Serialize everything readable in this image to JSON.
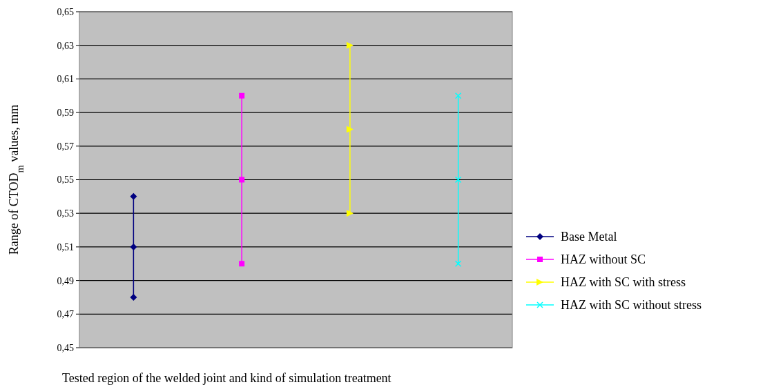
{
  "chart_data": {
    "type": "line",
    "xlabel": "Tested region of the welded joint and kind of  simulation  treatment",
    "ylabel": "Range of CTOD$_{m}$ values, mm",
    "categories": [
      null,
      null,
      null,
      null
    ],
    "series": [
      {
        "type": "bar",
        "color": "#000080",
        "base": [
          0.48,
          null,
          null,
          null
        ],
        "values": [
          0.06,
          null,
          null,
          null
        ]
      },
      {
        "type": "bar",
        "color": "#ff00ff",
        "base": [
          null,
          0.5,
          null,
          null
        ],
        "values": [
          null,
          0.1,
          null,
          null
        ]
      },
      {
        "type": "bar",
        "color": "#ffff00",
        "base": [
          null,
          null,
          0.53,
          null
        ],
        "values": [
          null,
          null,
          0.1,
          null
        ]
      },
      {
        "type": "bar",
        "color": "#00ffff",
        "base": [
          null,
          null,
          null,
          0.5
        ],
        "values": [
          null,
          null,
          null,
          0.1
        ]
      },
      {
        "name": "Base Metal",
        "color": "#000080",
        "marker": "diamond",
        "values": [
          0.51,
          null,
          null,
          null
        ]
      },
      {
        "name": "HAZ without SC",
        "color": "#ff00ff",
        "marker": "square",
        "values": [
          null,
          0.55,
          null,
          null
        ]
      },
      {
        "name": "HAZ with SC with stress",
        "color": "#ffff00",
        "marker": "triangle",
        "values": [
          null,
          null,
          0.58,
          null
        ]
      },
      {
        "name": "HAZ with SC without stress",
        "color": "#00ffff",
        "marker": "cross",
        "values": [
          null,
          null,
          null,
          0.55
        ]
      },
      {
        "type": "scatter",
        "color": "#000080",
        "marker": "diamond",
        "values": [
          0.48,
          null,
          null,
          null
        ]
      },
      {
        "type": "scatter",
        "color": "#000080",
        "marker": "diamond",
        "values": [
          0.54,
          null,
          null,
          null
        ]
      },
      {
        "type": "scatter",
        "color": "#ff00ff",
        "marker": "square",
        "values": [
          null,
          0.5,
          null,
          null
        ]
      },
      {
        "type": "scatter",
        "color": "#ff00ff",
        "marker": "square",
        "values": [
          null,
          0.6,
          null,
          null
        ]
      },
      {
        "type": "scatter",
        "color": "#ffff00",
        "marker": "triangle",
        "values": [
          null,
          null,
          0.53,
          null
        ]
      },
      {
        "type": "scatter",
        "color": "#ffff00",
        "marker": "triangle",
        "values": [
          null,
          null,
          0.63,
          null
        ]
      },
      {
        "type": "scatter",
        "color": "#00ffff",
        "marker": "cross",
        "values": [
          null,
          null,
          null,
          0.5
        ]
      },
      {
        "type": "scatter",
        "color": "#00ffff",
        "marker": "cross",
        "values": [
          null,
          null,
          null,
          0.6
        ]
      }
    ],
    "ylim": [
      0.45,
      0.65
    ],
    "yticks": [
      {
        "value": 0.45,
        "label": "0,45"
      },
      {
        "value": 0.47,
        "label": "0,47"
      },
      {
        "value": 0.49,
        "label": "0,49"
      },
      {
        "value": 0.51,
        "label": "0,51"
      },
      {
        "value": 0.53,
        "label": "0,53"
      },
      {
        "value": 0.55,
        "label": "0,55"
      },
      {
        "value": 0.57,
        "label": "0,57"
      },
      {
        "value": 0.59,
        "label": "0,59"
      },
      {
        "value": 0.61,
        "label": "0,61"
      },
      {
        "value": 0.63,
        "label": "0,63"
      },
      {
        "value": 0.65,
        "label": "0,65"
      }
    ],
    "grid": "y",
    "legend": "right"
  }
}
